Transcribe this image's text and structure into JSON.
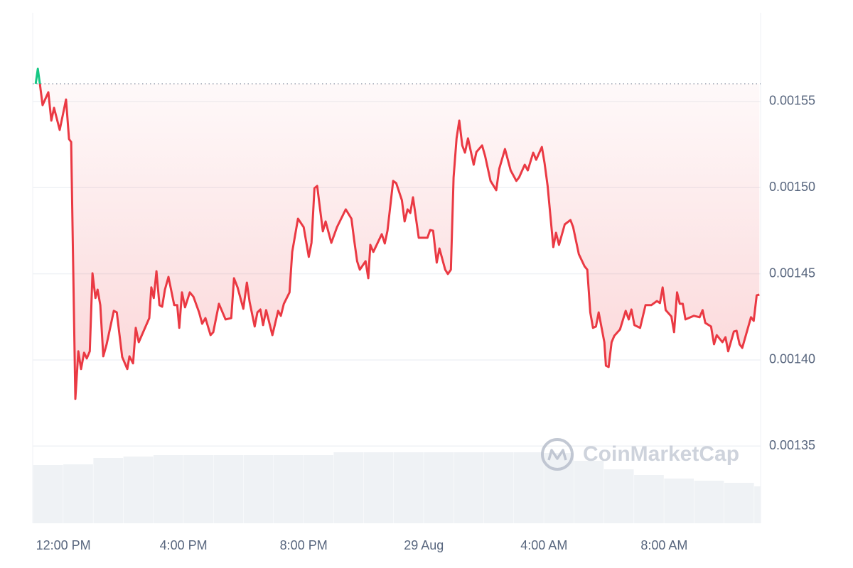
{
  "chart_data": {
    "type": "line",
    "watermark": "CoinMarketCap",
    "reference": 0.0015603,
    "up_color": "#16c784",
    "grid": true,
    "xlim": [
      -1.02,
      23.21
    ],
    "ylim": [
      0.0013052,
      0.0016015
    ],
    "xticks": [
      {
        "value": 0,
        "label": "12:00 PM"
      },
      {
        "value": 4,
        "label": "4:00 PM"
      },
      {
        "value": 8,
        "label": "8:00 PM"
      },
      {
        "value": 12,
        "label": "29 Aug"
      },
      {
        "value": 16,
        "label": "4:00 AM"
      },
      {
        "value": 20,
        "label": "8:00 AM"
      }
    ],
    "yticks": [
      {
        "value": 0.00135,
        "label": "0.00135"
      },
      {
        "value": 0.0014,
        "label": "0.00140"
      },
      {
        "value": 0.00145,
        "label": "0.00145"
      },
      {
        "value": 0.0015,
        "label": "0.00150"
      },
      {
        "value": 0.00155,
        "label": "0.00155"
      }
    ],
    "x": [
      -0.92,
      -0.85,
      -0.78,
      -0.69,
      -0.5,
      -0.4,
      -0.31,
      -0.12,
      0.09,
      0.19,
      0.26,
      0.4,
      0.5,
      0.59,
      0.69,
      0.78,
      0.88,
      0.97,
      1.07,
      1.14,
      1.23,
      1.33,
      1.44,
      1.68,
      1.78,
      1.96,
      2.13,
      2.2,
      2.32,
      2.41,
      2.51,
      2.86,
      2.93,
      3.01,
      3.1,
      3.2,
      3.29,
      3.38,
      3.5,
      3.69,
      3.79,
      3.86,
      3.95,
      4.05,
      4.21,
      4.33,
      4.52,
      4.62,
      4.73,
      4.9,
      4.99,
      5.18,
      5.4,
      5.59,
      5.68,
      5.8,
      5.99,
      6.11,
      6.2,
      6.37,
      6.46,
      6.56,
      6.65,
      6.75,
      6.96,
      7.15,
      7.24,
      7.34,
      7.53,
      7.62,
      7.81,
      8.0,
      8.17,
      8.26,
      8.36,
      8.45,
      8.64,
      8.73,
      8.92,
      9.11,
      9.4,
      9.59,
      9.68,
      9.78,
      9.87,
      10.06,
      10.15,
      10.22,
      10.32,
      10.6,
      10.7,
      10.79,
      10.98,
      11.08,
      11.27,
      11.36,
      11.46,
      11.55,
      11.64,
      11.83,
      12.12,
      12.21,
      12.31,
      12.43,
      12.52,
      12.71,
      12.8,
      12.9,
      12.99,
      13.09,
      13.18,
      13.28,
      13.37,
      13.47,
      13.66,
      13.75,
      13.94,
      14.04,
      14.22,
      14.41,
      14.51,
      14.7,
      14.89,
      15.08,
      15.17,
      15.36,
      15.46,
      15.64,
      15.74,
      15.93,
      16.02,
      16.12,
      16.31,
      16.4,
      16.5,
      16.69,
      16.88,
      16.97,
      17.16,
      17.35,
      17.44,
      17.54,
      17.63,
      17.73,
      17.82,
      18.01,
      18.06,
      18.15,
      18.25,
      18.34,
      18.53,
      18.72,
      18.82,
      18.91,
      19.01,
      19.2,
      19.38,
      19.57,
      19.76,
      19.86,
      19.95,
      20.05,
      20.24,
      20.33,
      20.43,
      20.52,
      20.62,
      20.71,
      20.99,
      21.18,
      21.28,
      21.37,
      21.56,
      21.66,
      21.75,
      21.94,
      22.04,
      22.13,
      22.32,
      22.41,
      22.51,
      22.6,
      22.89,
      22.98,
      23.08,
      23.17
    ],
    "series": [
      {
        "color": "#ea3943",
        "values": [
          0.0015603,
          0.001569,
          0.0015603,
          0.0015479,
          0.0015554,
          0.0015389,
          0.0015463,
          0.0015335,
          0.0015512,
          0.0015282,
          0.0015265,
          0.0013774,
          0.001405,
          0.0013947,
          0.0014042,
          0.0014009,
          0.001405,
          0.0014503,
          0.0014359,
          0.0014408,
          0.0014318,
          0.0014021,
          0.0014091,
          0.0014285,
          0.0014276,
          0.0014017,
          0.0013947,
          0.0014021,
          0.001398,
          0.0014186,
          0.0014103,
          0.0014243,
          0.0014421,
          0.0014359,
          0.0014515,
          0.0014318,
          0.0014309,
          0.0014408,
          0.0014482,
          0.0014318,
          0.0014318,
          0.0014186,
          0.0014392,
          0.0014305,
          0.0014392,
          0.0014367,
          0.0014276,
          0.001421,
          0.0014243,
          0.0014144,
          0.0014161,
          0.0014326,
          0.0014235,
          0.0014243,
          0.0014474,
          0.0014421,
          0.0014297,
          0.0014449,
          0.0014338,
          0.0014194,
          0.0014276,
          0.0014293,
          0.0014202,
          0.0014289,
          0.0014144,
          0.0014285,
          0.0014256,
          0.0014326,
          0.0014392,
          0.0014627,
          0.001482,
          0.0014771,
          0.0014598,
          0.001468,
          0.0014997,
          0.001501,
          0.0014746,
          0.0014804,
          0.001468,
          0.0014771,
          0.0014874,
          0.001482,
          0.0014697,
          0.0014573,
          0.0014524,
          0.0014573,
          0.0014474,
          0.0014668,
          0.0014627,
          0.001473,
          0.0014676,
          0.001475,
          0.0015039,
          0.0015026,
          0.0014927,
          0.0014804,
          0.0014874,
          0.0014853,
          0.0014944,
          0.0014709,
          0.0014709,
          0.0014754,
          0.001475,
          0.0014565,
          0.0014647,
          0.0014524,
          0.0014499,
          0.0014524,
          0.0015059,
          0.0015286,
          0.0015389,
          0.0015245,
          0.0015203,
          0.0015286,
          0.0015133,
          0.0015207,
          0.0015245,
          0.0015183,
          0.0015039,
          0.0014985,
          0.0015109,
          0.0015224,
          0.00151,
          0.0015039,
          0.0015059,
          0.0015133,
          0.00151,
          0.0015203,
          0.0015162,
          0.0015236,
          0.0015142,
          0.001501,
          0.0014655,
          0.0014738,
          0.0014668,
          0.0014787,
          0.0014812,
          0.0014771,
          0.0014614,
          0.0014544,
          0.0014524,
          0.0014276,
          0.0014186,
          0.0014194,
          0.0014276,
          0.0014103,
          0.0013967,
          0.0013959,
          0.0014103,
          0.001414,
          0.0014177,
          0.0014285,
          0.0014235,
          0.0014293,
          0.0014202,
          0.0014186,
          0.0014318,
          0.0014318,
          0.0014342,
          0.001433,
          0.0014421,
          0.0014289,
          0.0014252,
          0.0014161,
          0.0014392,
          0.0014326,
          0.0014326,
          0.0014235,
          0.0014256,
          0.0014248,
          0.0014289,
          0.0014215,
          0.0014194,
          0.0014091,
          0.0014144,
          0.0014103,
          0.0014132,
          0.001405,
          0.0014165,
          0.0014169,
          0.0014091,
          0.001407,
          0.0014248,
          0.0014227,
          0.0014375,
          0.0014379
        ]
      }
    ],
    "volume": {
      "color": "#eff2f5",
      "x": [
        -1,
        0,
        1,
        2,
        3,
        4,
        5,
        6,
        7,
        8,
        9,
        10,
        11,
        12,
        13,
        14,
        15,
        16,
        17,
        18,
        19,
        20,
        21,
        22,
        23
      ],
      "values": [
        82,
        83,
        92,
        94,
        96,
        96,
        96,
        96,
        96,
        96,
        100,
        100,
        100,
        100,
        100,
        100,
        100,
        99,
        88,
        76,
        68,
        63,
        60,
        57,
        52
      ]
    }
  }
}
